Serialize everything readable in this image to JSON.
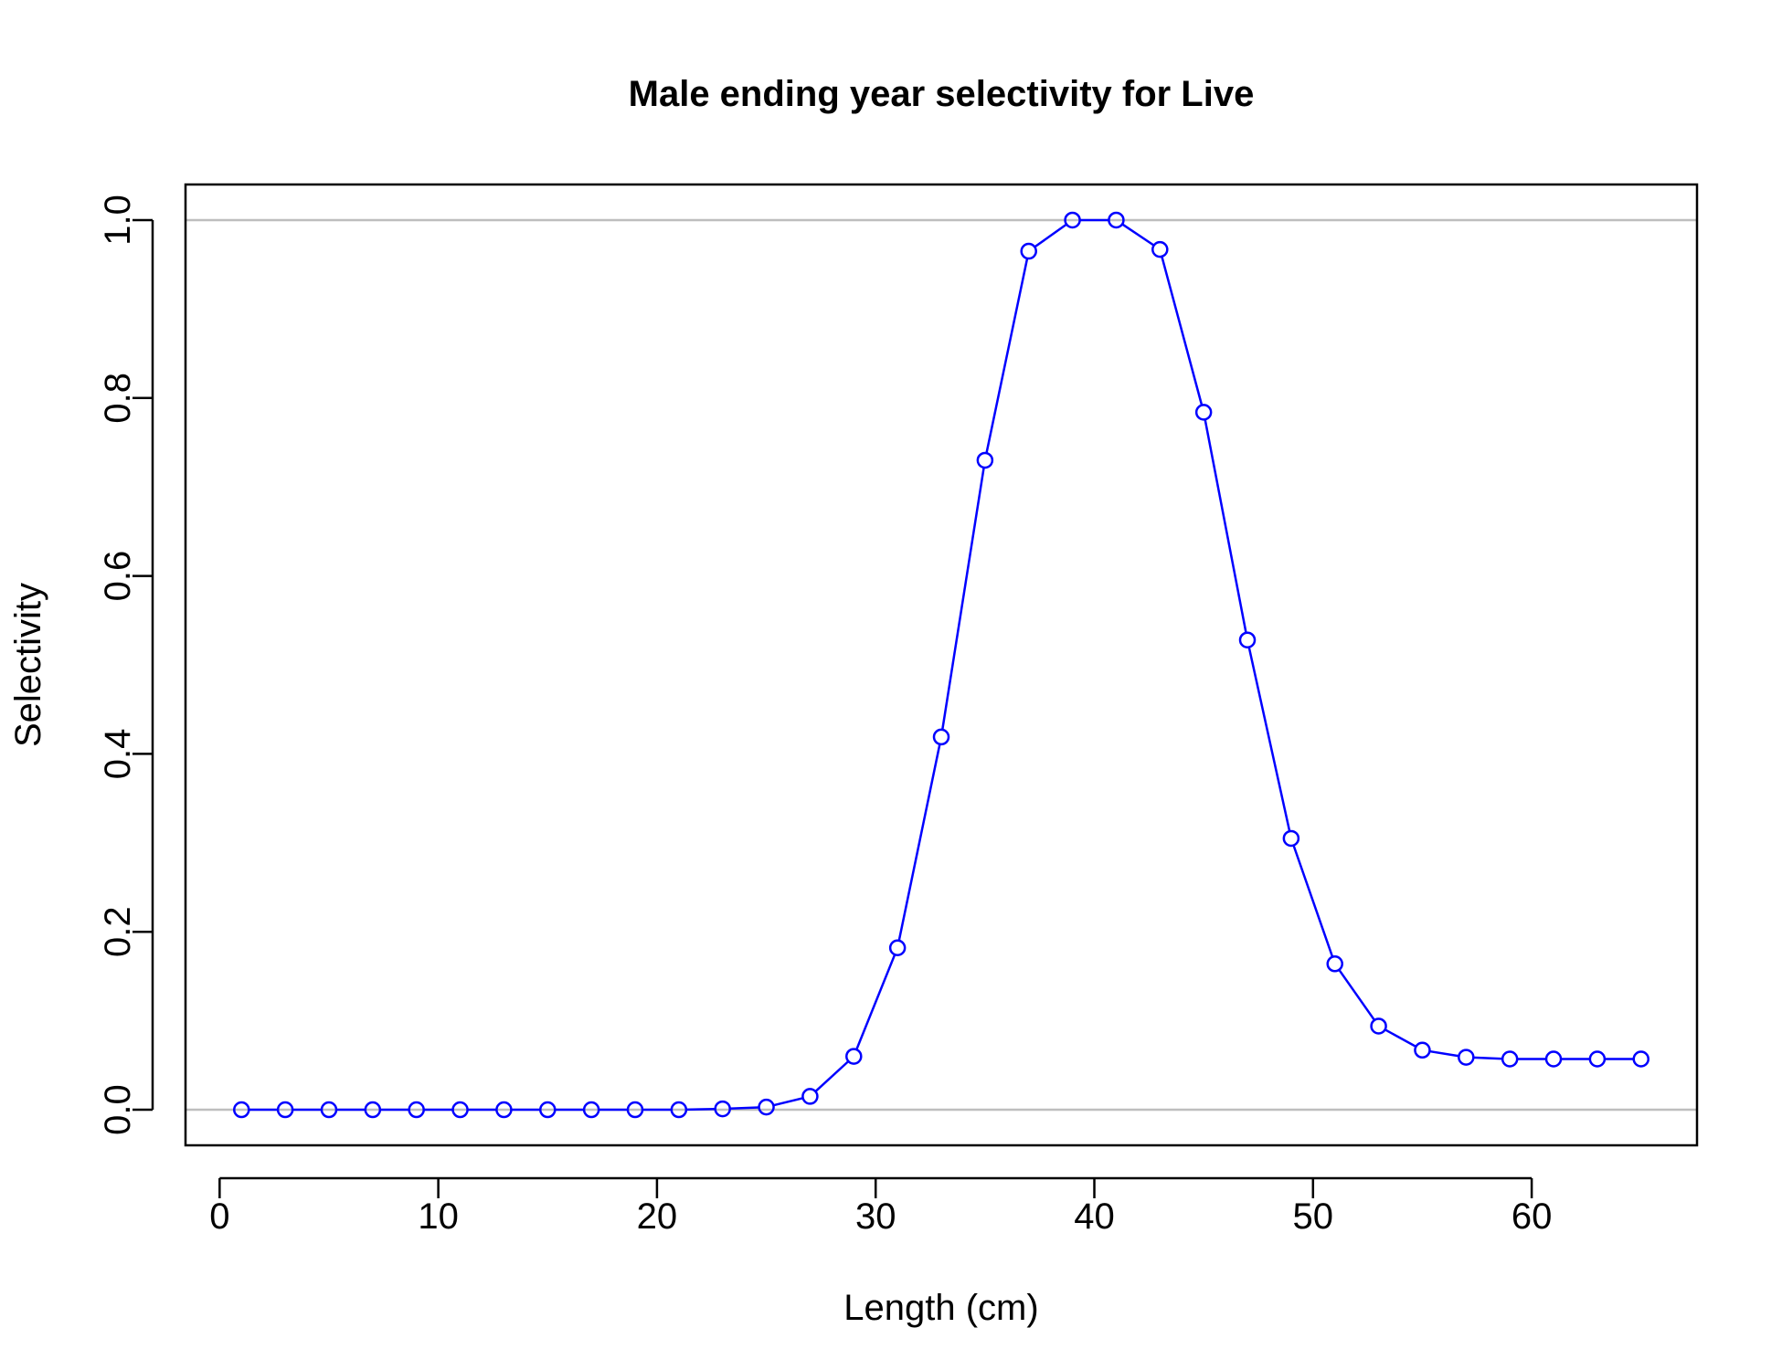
{
  "chart_data": {
    "type": "line",
    "title": "Male ending year selectivity for Live",
    "xlabel": "Length (cm)",
    "ylabel": "Selectivity",
    "xlim": [
      -1.56,
      67.56
    ],
    "ylim": [
      -0.04,
      1.04
    ],
    "x_ticks": [
      0,
      10,
      20,
      30,
      40,
      50,
      60
    ],
    "y_ticks": [
      0.0,
      0.2,
      0.4,
      0.6,
      0.8,
      1.0
    ],
    "x_tick_labels": [
      "0",
      "10",
      "20",
      "30",
      "40",
      "50",
      "60"
    ],
    "y_tick_labels": [
      "0.0",
      "0.2",
      "0.4",
      "0.6",
      "0.8",
      "1.0"
    ],
    "reference_lines": [
      0,
      1
    ],
    "grid": false,
    "colors": {
      "series": "#0000ff",
      "reference_line": "#bebebe",
      "axes": "#000000"
    },
    "series": [
      {
        "marker": "open-circle",
        "x": [
          1,
          3,
          5,
          7,
          9,
          11,
          13,
          15,
          17,
          19,
          21,
          23,
          25,
          27,
          29,
          31,
          33,
          35,
          37,
          39,
          41,
          43,
          45,
          47,
          49,
          51,
          53,
          55,
          57,
          59,
          61,
          63,
          65
        ],
        "y": [
          0.0,
          0.0,
          0.0,
          0.0,
          0.0,
          0.0,
          0.0,
          0.0,
          0.0,
          0.0,
          0.0,
          0.001,
          0.003,
          0.015,
          0.06,
          0.182,
          0.419,
          0.73,
          0.965,
          1.0,
          1.0,
          0.967,
          0.784,
          0.528,
          0.305,
          0.164,
          0.094,
          0.067,
          0.059,
          0.057,
          0.057,
          0.057,
          0.057
        ]
      }
    ]
  }
}
